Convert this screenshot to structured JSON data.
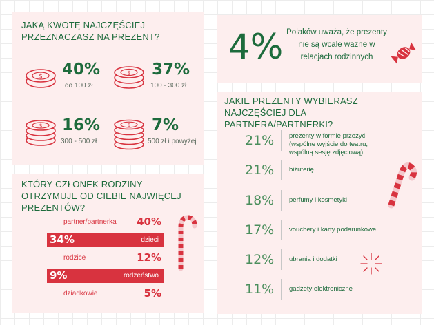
{
  "q1": {
    "title": "JAKĄ KWOTĘ NAJCZĘŚCIEJ PRZEZNACZASZ NA PREZENT?",
    "items": [
      {
        "value": "40%",
        "label": "do 100 zł"
      },
      {
        "value": "37%",
        "label": "100 - 300 zł"
      },
      {
        "value": "16%",
        "label": "300 - 500 zł"
      },
      {
        "value": "7%",
        "label": "500 zł i powyżej"
      }
    ]
  },
  "stat": {
    "value": "4%",
    "text": "Polaków uważa, że prezenty nie są wcale ważne w relacjach rodzinnych"
  },
  "q2": {
    "title": "KTÓRY CZŁONEK RODZINY OTRZYMUJE OD CIEBIE NAJWIĘCEJ PREZENTÓW?",
    "rows": [
      {
        "label": "partner/partnerka",
        "value": "40%"
      },
      {
        "label": "dzieci",
        "value": "34%"
      },
      {
        "label": "rodzice",
        "value": "12%"
      },
      {
        "label": "rodzeństwo",
        "value": "9%"
      },
      {
        "label": "dziadkowie",
        "value": "5%"
      }
    ]
  },
  "q3": {
    "title": "JAKIE PREZENTY WYBIERASZ NAJCZĘŚCIEJ DLA PARTNERA/PARTNERKI?",
    "rows": [
      {
        "value": "21%",
        "label": "prezenty w formie przeżyć (wspólne wyjście do teatru, wspólną sesję zdjęciową)"
      },
      {
        "value": "21%",
        "label": "biżuterię"
      },
      {
        "value": "18%",
        "label": "perfumy i kosmetyki"
      },
      {
        "value": "17%",
        "label": "vouchery i karty podarunkowe"
      },
      {
        "value": "12%",
        "label": "ubrania i dodatki"
      },
      {
        "value": "11%",
        "label": "gadżety elektroniczne"
      }
    ]
  },
  "colors": {
    "green": "#1d6b3c",
    "red": "#d8333f",
    "panel": "#fdeeee"
  },
  "icons": [
    "coin-stack-icon",
    "candy-icon",
    "candy-cane-icon",
    "sparkle-icon"
  ]
}
